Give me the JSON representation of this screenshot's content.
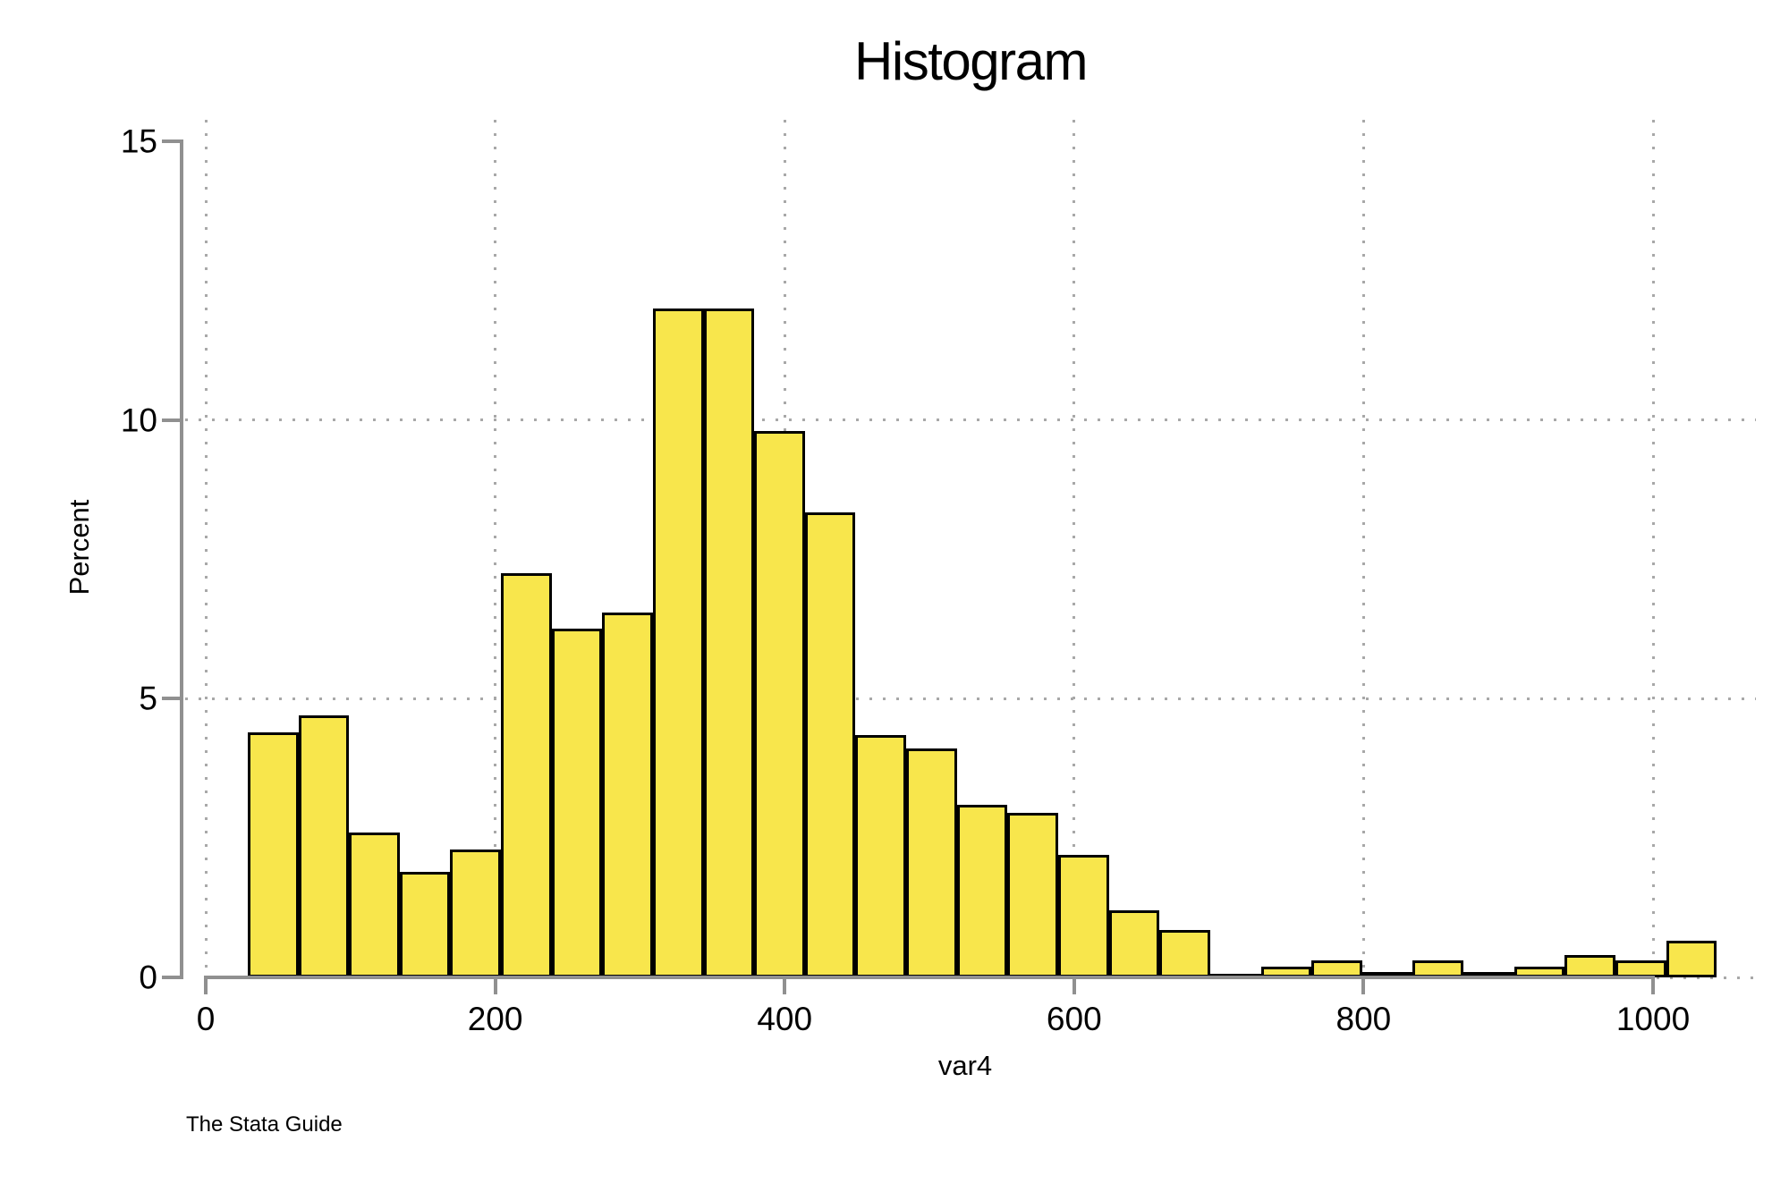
{
  "watermark": "The Stata Guide",
  "colors": {
    "bar_fill": "#F8E64C",
    "bar_border": "#000000",
    "axis": "#909090",
    "gridline": "#a8a8a8",
    "background": "#ffffff",
    "text": "#000000"
  },
  "chart_data": {
    "type": "bar",
    "subtype": "histogram",
    "title": "Histogram",
    "xlabel": "var4",
    "ylabel": "Percent",
    "ylim": [
      0,
      15
    ],
    "xlim_data": [
      -17,
      1071
    ],
    "x_ticks": [
      0,
      200,
      400,
      600,
      800,
      1000
    ],
    "x_tick_labels": [
      "0",
      "200",
      "400",
      "600",
      "800",
      "1000"
    ],
    "y_ticks": [
      0,
      5,
      10,
      15
    ],
    "y_tick_labels": [
      "0",
      "5",
      "10",
      "15"
    ],
    "y_gridlines": [
      5,
      10
    ],
    "grid_style": "dotted",
    "legend": "none",
    "bin_start": 29,
    "bin_width": 35,
    "percents": [
      4.4,
      4.7,
      2.6,
      1.9,
      2.3,
      7.25,
      6.25,
      6.55,
      12.0,
      12.0,
      9.8,
      8.35,
      4.35,
      4.1,
      3.1,
      2.95,
      2.2,
      1.2,
      0.85,
      0.06,
      0.2,
      0.3,
      0.1,
      0.3,
      0.1,
      0.2,
      0.4,
      0.3,
      0.65
    ]
  }
}
